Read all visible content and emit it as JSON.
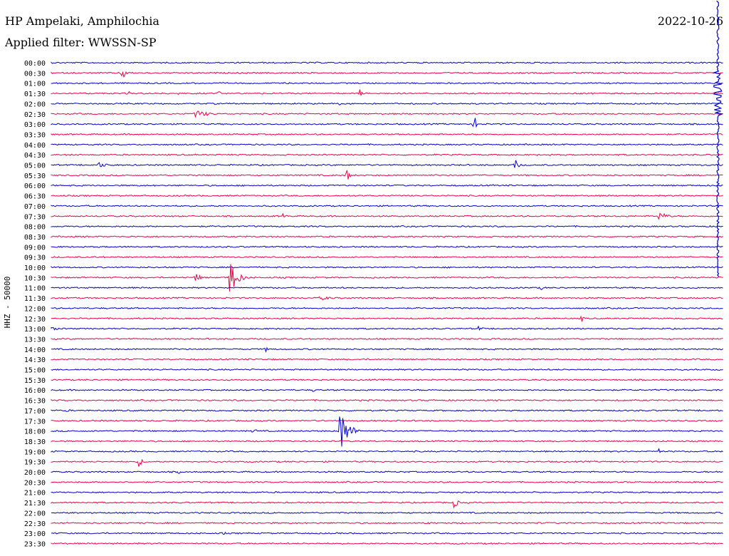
{
  "header": {
    "station": "HP Ampelaki, Amphilochia",
    "filter": "Applied filter: WWSSN-SP",
    "date": "2022-10-26"
  },
  "chart_data": {
    "type": "line",
    "title": "",
    "ylabel": "HHZ - 50000",
    "colors": [
      "#0000cc",
      "#ee0044"
    ],
    "rows": [
      "00:00",
      "00:30",
      "01:00",
      "01:30",
      "02:00",
      "02:30",
      "03:00",
      "03:30",
      "04:00",
      "04:30",
      "05:00",
      "05:30",
      "06:00",
      "06:30",
      "07:00",
      "07:30",
      "08:00",
      "08:30",
      "09:00",
      "09:30",
      "10:00",
      "10:30",
      "11:00",
      "11:30",
      "12:00",
      "12:30",
      "13:00",
      "13:30",
      "14:00",
      "14:30",
      "15:00",
      "15:30",
      "16:00",
      "16:30",
      "17:00",
      "17:30",
      "18:00",
      "18:30",
      "19:00",
      "19:30",
      "20:00",
      "20:30",
      "21:00",
      "21:30",
      "22:00",
      "22:30",
      "23:00",
      "23:30"
    ],
    "events": [
      {
        "row": 1,
        "pos": 0.105,
        "amp": 12,
        "dur": 0.015
      },
      {
        "row": 3,
        "pos": 0.115,
        "amp": 6,
        "dur": 0.004
      },
      {
        "row": 3,
        "pos": 0.19,
        "amp": 4,
        "dur": 0.004
      },
      {
        "row": 3,
        "pos": 0.25,
        "amp": 6,
        "dur": 0.004
      },
      {
        "row": 3,
        "pos": 0.46,
        "amp": 8,
        "dur": 0.006
      },
      {
        "row": 4,
        "pos": 0.43,
        "amp": 3,
        "dur": 0.003
      },
      {
        "row": 5,
        "pos": 0.215,
        "amp": 6,
        "dur": 0.05
      },
      {
        "row": 6,
        "pos": 0.63,
        "amp": 14,
        "dur": 0.006
      },
      {
        "row": 6,
        "pos": 0.745,
        "amp": 3,
        "dur": 0.004
      },
      {
        "row": 6,
        "pos": 0.77,
        "amp": 3,
        "dur": 0.004
      },
      {
        "row": 10,
        "pos": 0.07,
        "amp": 4,
        "dur": 0.045
      },
      {
        "row": 10,
        "pos": 0.69,
        "amp": 9,
        "dur": 0.015
      },
      {
        "row": 11,
        "pos": 0.44,
        "amp": 10,
        "dur": 0.012
      },
      {
        "row": 15,
        "pos": 0.345,
        "amp": 4,
        "dur": 0.015
      },
      {
        "row": 15,
        "pos": 0.905,
        "amp": 7,
        "dur": 0.03
      },
      {
        "row": 21,
        "pos": 0.215,
        "amp": 7,
        "dur": 0.02
      },
      {
        "row": 21,
        "pos": 0.265,
        "amp": 28,
        "dur": 0.03
      },
      {
        "row": 22,
        "pos": 0.73,
        "amp": 6,
        "dur": 0.004
      },
      {
        "row": 23,
        "pos": 0.4,
        "amp": 3,
        "dur": 0.06
      },
      {
        "row": 25,
        "pos": 0.79,
        "amp": 7,
        "dur": 0.006
      },
      {
        "row": 26,
        "pos": 0.0,
        "amp": 2,
        "dur": 0.08
      },
      {
        "row": 26,
        "pos": 0.635,
        "amp": 4,
        "dur": 0.02
      },
      {
        "row": 28,
        "pos": 0.32,
        "amp": 5,
        "dur": 0.005
      },
      {
        "row": 32,
        "pos": 0.39,
        "amp": 3,
        "dur": 0.015
      },
      {
        "row": 34,
        "pos": 0.02,
        "amp": 3,
        "dur": 0.02
      },
      {
        "row": 36,
        "pos": 0.3,
        "amp": 3,
        "dur": 0.03
      },
      {
        "row": 36,
        "pos": 0.43,
        "amp": 36,
        "dur": 0.03
      },
      {
        "row": 38,
        "pos": 0.905,
        "amp": 8,
        "dur": 0.005
      },
      {
        "row": 39,
        "pos": 0.13,
        "amp": 8,
        "dur": 0.015
      },
      {
        "row": 40,
        "pos": 0.19,
        "amp": 3,
        "dur": 0.015
      },
      {
        "row": 43,
        "pos": 0.6,
        "amp": 10,
        "dur": 0.012
      },
      {
        "row": 43,
        "pos": 0.85,
        "amp": 3,
        "dur": 0.004
      },
      {
        "row": 45,
        "pos": 0.56,
        "amp": 3,
        "dur": 0.015
      },
      {
        "row": 46,
        "pos": 0.255,
        "amp": 3,
        "dur": 0.015
      }
    ],
    "spikes": [
      {
        "row": 3,
        "pos": 0.992,
        "from_row": -6,
        "to_row": 21
      }
    ]
  }
}
